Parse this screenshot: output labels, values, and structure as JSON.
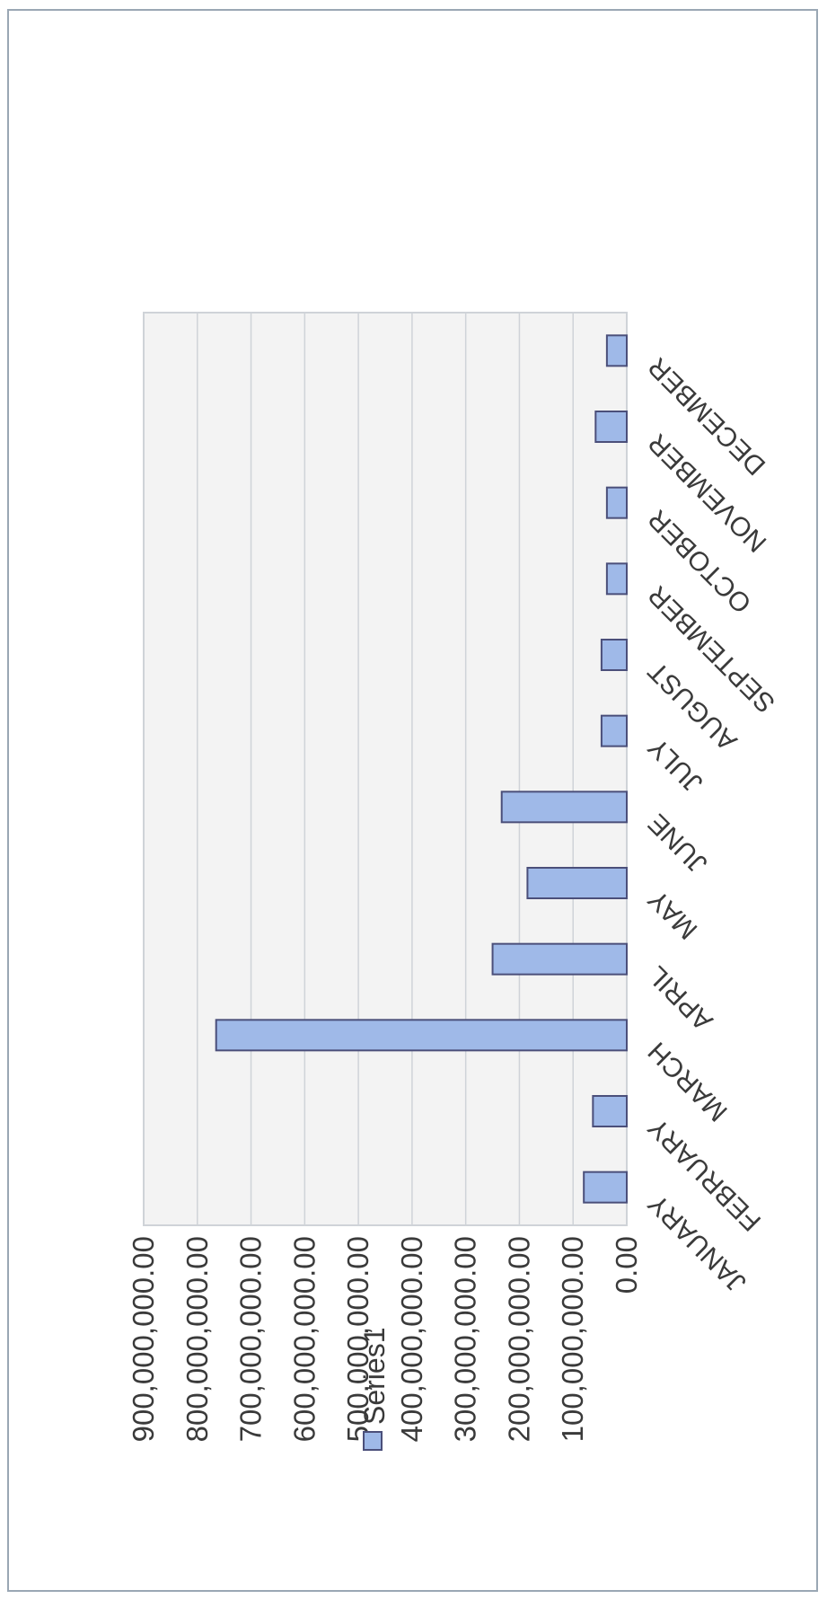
{
  "colors": {
    "bar_fill": "#9fb9e8",
    "bar_stroke": "#4b4f7a",
    "plot_bg": "#f3f3f3",
    "grid": "#cfd3d8",
    "frame": "#9aa7b4"
  },
  "chart_data": {
    "type": "bar",
    "orientation": "horizontal",
    "title": "",
    "xlabel": "",
    "ylabel": "",
    "categories": [
      "JANUARY",
      "FEBRUARY",
      "MARCH",
      "APRIL",
      "MAY",
      "JUNE",
      "JULY",
      "AUGUST",
      "SEPTEMBER",
      "OCTOBER",
      "NOVEMBER",
      "DECEMBER"
    ],
    "series": [
      {
        "name": "Series1",
        "values": [
          80000000,
          63000000,
          765000000,
          250000000,
          185000000,
          233000000,
          47000000,
          47000000,
          37000000,
          37000000,
          58000000,
          37000000
        ]
      }
    ],
    "value_axis": {
      "min": 0,
      "max": 900000000,
      "tick_labels": [
        "0.00",
        "100,000,000.00",
        "200,000,000.00",
        "300,000,000.00",
        "400,000,000.00",
        "500,000,000.00",
        "600,000,000.00",
        "700,000,000.00",
        "800,000,000.00",
        "900,000,000.00"
      ]
    },
    "grid": true,
    "legend_position": "right"
  }
}
